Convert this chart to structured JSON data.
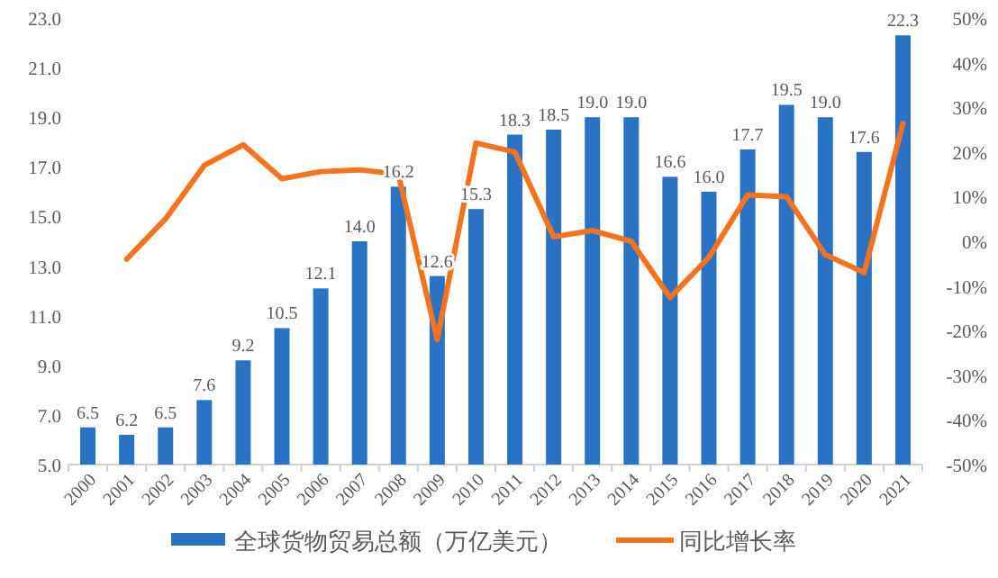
{
  "chart_data": {
    "type": "bar",
    "categories": [
      "2000",
      "2001",
      "2002",
      "2003",
      "2004",
      "2005",
      "2006",
      "2007",
      "2008",
      "2009",
      "2010",
      "2011",
      "2012",
      "2013",
      "2014",
      "2015",
      "2016",
      "2017",
      "2018",
      "2019",
      "2020",
      "2021"
    ],
    "series": [
      {
        "name": "全球货物贸易总额（万亿美元）",
        "color": "#2a72c4",
        "values": [
          6.5,
          6.2,
          6.5,
          7.6,
          9.2,
          10.5,
          12.1,
          14.0,
          16.2,
          12.6,
          15.3,
          18.3,
          18.5,
          19.0,
          19.0,
          16.6,
          16.0,
          17.7,
          19.5,
          19.0,
          17.6,
          22.3
        ],
        "value_labels": [
          "6.5",
          "6.2",
          "6.5",
          "7.6",
          "9.2",
          "10.5",
          "12.1",
          "14.0",
          "16.2",
          "12.6",
          "15.3",
          "18.3",
          "18.5",
          "19.0",
          "19.0",
          "16.6",
          "16.0",
          "17.7",
          "19.5",
          "19.0",
          "17.6",
          "22.3"
        ]
      },
      {
        "name": "同比增长率",
        "type": "line",
        "axis": "y2",
        "color": "#f4731f",
        "values": [
          null,
          -4,
          5,
          17,
          21.6,
          14,
          15.6,
          16,
          15,
          -22,
          22,
          20,
          1,
          2.4,
          0,
          -12.6,
          -3.6,
          10.4,
          10,
          -3,
          -7,
          26.4
        ]
      }
    ],
    "ylim": [
      5,
      23
    ],
    "yticks": [
      {
        "value": 5,
        "label": "5.0"
      },
      {
        "value": 7,
        "label": "7.0"
      },
      {
        "value": 9,
        "label": "9.0"
      },
      {
        "value": 11,
        "label": "11.0"
      },
      {
        "value": 13,
        "label": "13.0"
      },
      {
        "value": 15,
        "label": "15.0"
      },
      {
        "value": 17,
        "label": "17.0"
      },
      {
        "value": 19,
        "label": "19.0"
      },
      {
        "value": 21,
        "label": "21.0"
      },
      {
        "value": 23,
        "label": "23.0"
      }
    ],
    "y2lim": [
      -50,
      50
    ],
    "y2ticks": [
      {
        "value": -50,
        "label": "-50%"
      },
      {
        "value": -40,
        "label": "-40%"
      },
      {
        "value": -30,
        "label": "-30%"
      },
      {
        "value": -20,
        "label": "-20%"
      },
      {
        "value": -10,
        "label": "-10%"
      },
      {
        "value": 0,
        "label": "0%"
      },
      {
        "value": 10,
        "label": "10%"
      },
      {
        "value": 20,
        "label": "20%"
      },
      {
        "value": 30,
        "label": "30%"
      },
      {
        "value": 40,
        "label": "40%"
      },
      {
        "value": 50,
        "label": "50%"
      }
    ],
    "legend": "bottom"
  }
}
